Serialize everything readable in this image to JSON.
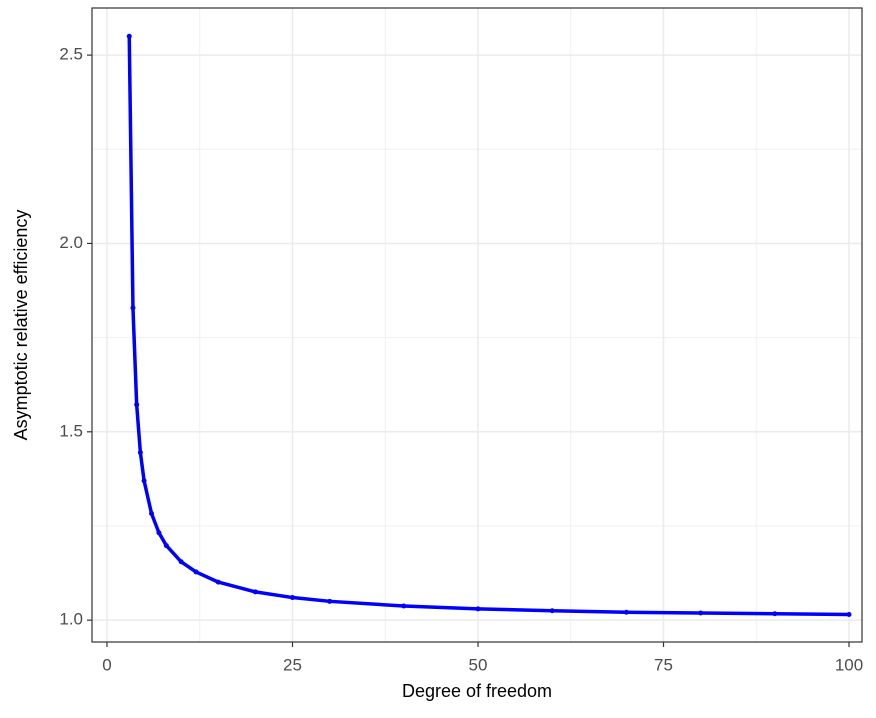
{
  "chart_data": {
    "type": "line",
    "xlabel": "Degree of freedom",
    "ylabel": "Asymptotic relative efficiency",
    "x": [
      3,
      3.5,
      4,
      4.5,
      5,
      6,
      7,
      8,
      10,
      12,
      15,
      20,
      25,
      30,
      40,
      50,
      60,
      70,
      80,
      90,
      100
    ],
    "series": [
      {
        "color": "#0000ff",
        "values": [
          2.55,
          1.829,
          1.572,
          1.445,
          1.37,
          1.283,
          1.232,
          1.198,
          1.155,
          1.128,
          1.101,
          1.075,
          1.06,
          1.05,
          1.0375,
          1.03,
          1.025,
          1.021,
          1.019,
          1.017,
          1.015
        ]
      }
    ],
    "xlim": [
      -2.02,
      101.75
    ],
    "ylim": [
      0.942,
      2.625
    ],
    "xticks": [
      0,
      25,
      50,
      75,
      100
    ],
    "yticks": [
      {
        "value": 1,
        "label": "1.0"
      },
      {
        "value": 1.5,
        "label": "1.5"
      },
      {
        "value": 2,
        "label": "2.0"
      },
      {
        "value": 2.5,
        "label": "2.5"
      }
    ],
    "minor_xticks": [
      12.5,
      37.5,
      62.5,
      87.5
    ],
    "minor_yticks": [
      1.25,
      1.75,
      2.25
    ],
    "grid": true
  }
}
